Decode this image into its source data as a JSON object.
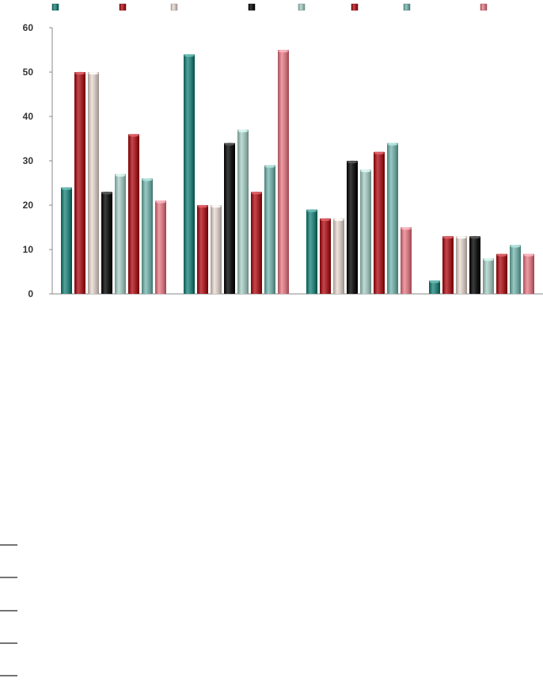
{
  "chart_data": {
    "type": "bar",
    "categories": [
      "",
      "",
      "",
      ""
    ],
    "series": [
      {
        "color": "#2a7b73",
        "values": [
          24,
          54,
          19,
          3
        ]
      },
      {
        "color": "#9c1f25",
        "values": [
          50,
          20,
          17,
          13
        ]
      },
      {
        "color": "#c8bcb6",
        "values": [
          50,
          20,
          17,
          13
        ]
      },
      {
        "color": "#151515",
        "values": [
          23,
          34,
          30,
          13
        ]
      },
      {
        "color": "#96b5ae",
        "values": [
          27,
          37,
          28,
          8
        ]
      },
      {
        "color": "#9c1f25",
        "values": [
          36,
          23,
          32,
          9
        ]
      },
      {
        "color": "#6fa29c",
        "values": [
          26,
          29,
          34,
          11
        ]
      },
      {
        "color": "#c9737d",
        "values": [
          21,
          55,
          15,
          9
        ]
      }
    ],
    "ylim": [
      0,
      60
    ],
    "yticks": [
      0,
      10,
      20,
      30,
      40,
      50,
      60
    ],
    "legend_position": "top",
    "grid": false
  }
}
